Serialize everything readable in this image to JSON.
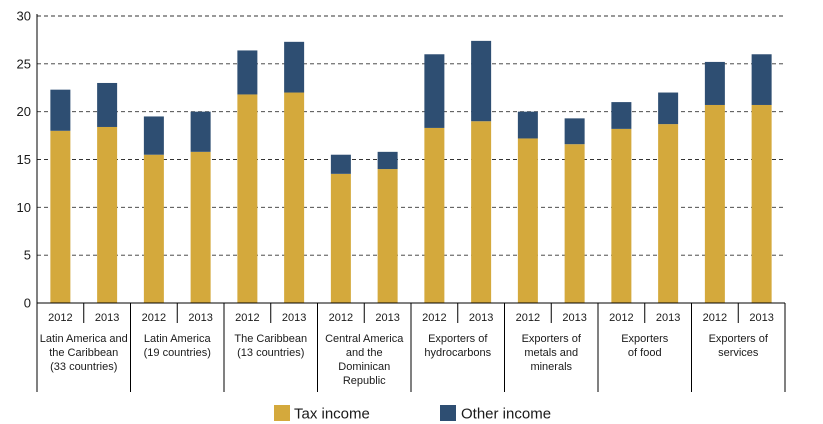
{
  "chart_data": {
    "type": "bar",
    "stacked": true,
    "ylim": [
      0,
      30
    ],
    "yticks": [
      0,
      5,
      10,
      15,
      20,
      25,
      30
    ],
    "grid": "horizontal dashed",
    "legend_position": "bottom",
    "groups": [
      {
        "label_lines": [
          "Latin America and",
          "the Caribbean",
          "(33 countries)"
        ],
        "years": [
          "2012",
          "2013"
        ]
      },
      {
        "label_lines": [
          "Latin America",
          "(19 countries)"
        ],
        "years": [
          "2012",
          "2013"
        ]
      },
      {
        "label_lines": [
          "The Caribbean",
          "(13 countries)"
        ],
        "years": [
          "2012",
          "2013"
        ]
      },
      {
        "label_lines": [
          "Central America",
          "and the",
          "Dominican",
          "Republic"
        ],
        "years": [
          "2012",
          "2013"
        ]
      },
      {
        "label_lines": [
          "Exporters of",
          "hydrocarbons"
        ],
        "years": [
          "2012",
          "2013"
        ]
      },
      {
        "label_lines": [
          "Exporters of",
          "metals and",
          "minerals"
        ],
        "years": [
          "2012",
          "2013"
        ]
      },
      {
        "label_lines": [
          "Exporters",
          "of food"
        ],
        "years": [
          "2012",
          "2013"
        ]
      },
      {
        "label_lines": [
          "Exporters of",
          "services"
        ],
        "years": [
          "2012",
          "2013"
        ]
      }
    ],
    "categories": [
      "Latin America and the Caribbean (33 countries) 2012",
      "Latin America and the Caribbean (33 countries) 2013",
      "Latin America (19 countries) 2012",
      "Latin America (19 countries) 2013",
      "The Caribbean (13 countries) 2012",
      "The Caribbean (13 countries) 2013",
      "Central America and the Dominican Republic 2012",
      "Central America and the Dominican Republic 2013",
      "Exporters of hydrocarbons 2012",
      "Exporters of hydrocarbons 2013",
      "Exporters of metals and minerals 2012",
      "Exporters of metals and minerals 2013",
      "Exporters of food 2012",
      "Exporters of food 2013",
      "Exporters of services 2012",
      "Exporters of services 2013"
    ],
    "series": [
      {
        "name": "Tax income",
        "color": "#d4a93c",
        "values": [
          18.0,
          18.4,
          15.5,
          15.8,
          21.8,
          22.0,
          13.5,
          14.0,
          18.3,
          19.0,
          17.2,
          16.6,
          18.2,
          18.7,
          20.7,
          20.7
        ]
      },
      {
        "name": "Other income",
        "color": "#2e4e72",
        "values": [
          4.3,
          4.6,
          4.0,
          4.2,
          4.6,
          5.3,
          2.0,
          1.8,
          7.7,
          8.4,
          2.8,
          2.7,
          2.8,
          3.3,
          4.5,
          5.3
        ]
      }
    ]
  }
}
